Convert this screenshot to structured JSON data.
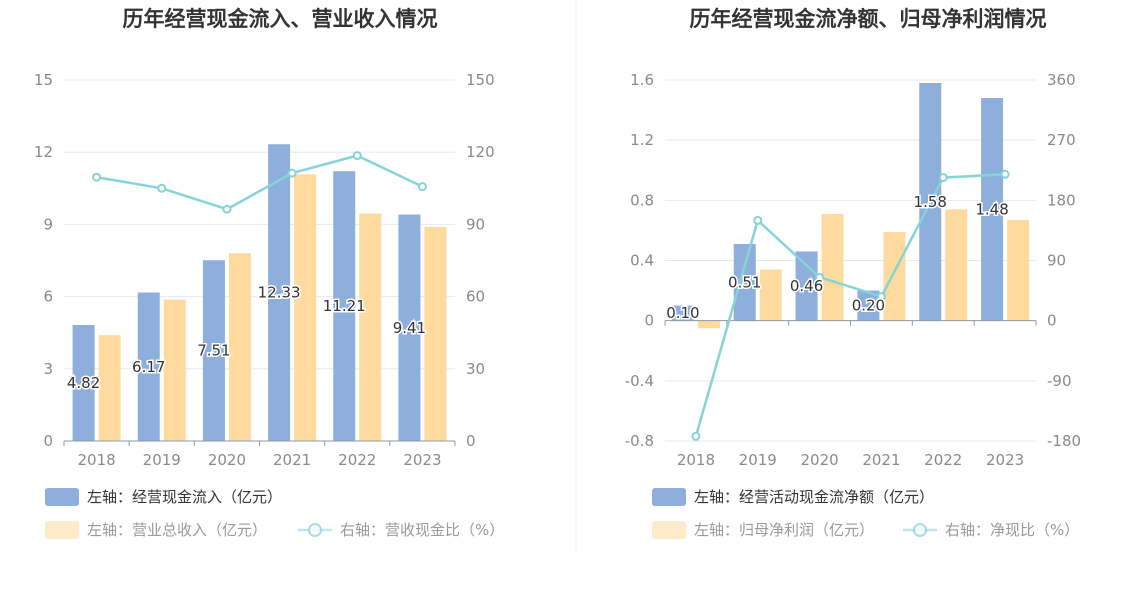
{
  "colors": {
    "blue": "#8EAEDC",
    "orange": "#FFDA9E",
    "line": "#86D3D8",
    "grid": "#E5E8F2",
    "axis": "#8F97A6"
  },
  "chart_data": [
    {
      "type": "bar",
      "title": "历年经营现金流入、营业收入情况",
      "categories": [
        "2018",
        "2019",
        "2020",
        "2021",
        "2022",
        "2023"
      ],
      "left_axis": {
        "ylim": [
          0,
          15
        ],
        "ticks": [
          0,
          3,
          6,
          9,
          12,
          15
        ],
        "tick_labels": [
          "0",
          "3",
          "6",
          "9",
          "12",
          "15"
        ]
      },
      "right_axis": {
        "ylim": [
          0,
          150
        ],
        "ticks": [
          0,
          30,
          60,
          90,
          120,
          150
        ],
        "tick_labels": [
          "0",
          "30",
          "60",
          "90",
          "120",
          "150"
        ]
      },
      "series": [
        {
          "name": "左轴：经营现金流入（亿元）",
          "type": "bar",
          "axis": "left",
          "color": "#8EAEDC",
          "values": [
            4.82,
            6.17,
            7.51,
            12.33,
            11.21,
            9.41
          ],
          "labels": [
            "4.82",
            "6.17",
            "7.51",
            "12.33",
            "11.21",
            "9.41"
          ]
        },
        {
          "name": "左轴：营业总收入（亿元）",
          "type": "bar",
          "axis": "left",
          "color": "#FFDA9E",
          "values": [
            4.4,
            5.88,
            7.8,
            11.08,
            9.45,
            8.9
          ]
        },
        {
          "name": "右轴：营收现金比（%）",
          "type": "line",
          "axis": "right",
          "color": "#86D3D8",
          "values": [
            109.6,
            105,
            96.3,
            111.3,
            118.6,
            105.7
          ]
        }
      ],
      "legend_position": "bottom-left",
      "grid": true
    },
    {
      "type": "bar",
      "title": "历年经营现金流净额、归母净利润情况",
      "categories": [
        "2018",
        "2019",
        "2020",
        "2021",
        "2022",
        "2023"
      ],
      "left_axis": {
        "ylim": [
          -0.8,
          1.6
        ],
        "ticks": [
          -0.8,
          -0.4,
          0,
          0.4,
          0.8,
          1.2,
          1.6
        ],
        "tick_labels": [
          "-0.8",
          "-0.4",
          "0",
          "0.4",
          "0.8",
          "1.2",
          "1.6"
        ]
      },
      "right_axis": {
        "ylim": [
          -180,
          360
        ],
        "ticks": [
          -180,
          -90,
          0,
          90,
          180,
          270,
          360
        ],
        "tick_labels": [
          "-180",
          "-90",
          "0",
          "90",
          "180",
          "270",
          "360"
        ]
      },
      "series": [
        {
          "name": "左轴：经营活动现金流净额（亿元）",
          "type": "bar",
          "axis": "left",
          "color": "#8EAEDC",
          "values": [
            0.1,
            0.51,
            0.46,
            0.2,
            1.58,
            1.48
          ],
          "labels": [
            "0.10",
            "0.51",
            "0.46",
            "0.20",
            "1.58",
            "1.48"
          ]
        },
        {
          "name": "左轴：归母净利润（亿元）",
          "type": "bar",
          "axis": "left",
          "color": "#FFDA9E",
          "values": [
            -0.05,
            0.34,
            0.71,
            0.59,
            0.74,
            0.67
          ]
        },
        {
          "name": "右轴：净现比（%）",
          "type": "line",
          "axis": "right",
          "color": "#86D3D8",
          "values": [
            -173,
            150,
            65,
            36,
            214,
            219
          ]
        }
      ],
      "legend_position": "bottom-left",
      "grid": true
    }
  ]
}
